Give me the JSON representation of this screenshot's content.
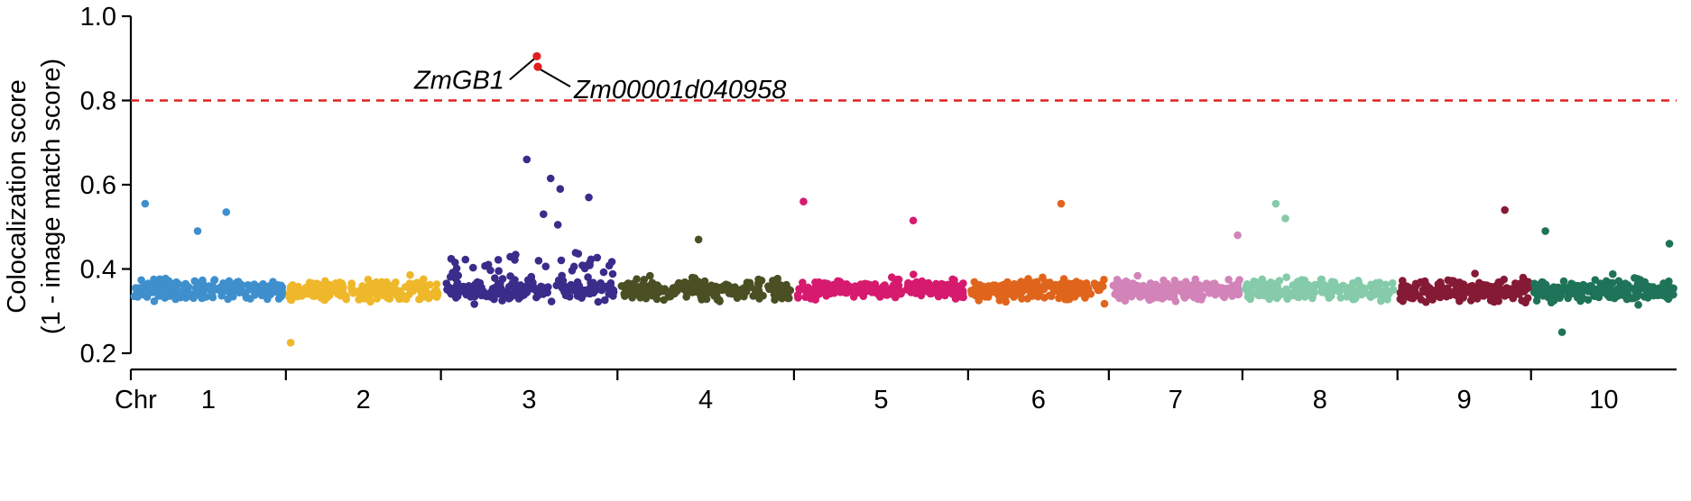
{
  "chart_data": {
    "type": "scatter",
    "title": "",
    "ylabel_lines": [
      "Colocalization score",
      "(1 - image match score)"
    ],
    "xlabel": "Chr",
    "ylim": [
      0.2,
      1.0
    ],
    "yticks": [
      "0.2",
      "0.4",
      "0.6",
      "0.8",
      "1.0"
    ],
    "threshold": {
      "value": 0.8,
      "color": "#e02020",
      "style": "dashed"
    },
    "highlight_color": "#e02020",
    "chromosomes": [
      {
        "name": "1",
        "color": "#3f8fcd",
        "span": [
          0,
          325
        ]
      },
      {
        "name": "2",
        "color": "#efb82a",
        "span": [
          325,
          650
        ]
      },
      {
        "name": "3",
        "color": "#3a2c8a",
        "span": [
          650,
          1020
        ]
      },
      {
        "name": "4",
        "color": "#4a4f24",
        "span": [
          1020,
          1390
        ]
      },
      {
        "name": "5",
        "color": "#d61a6e",
        "span": [
          1390,
          1755
        ]
      },
      {
        "name": "6",
        "color": "#e0651c",
        "span": [
          1755,
          2050
        ]
      },
      {
        "name": "7",
        "color": "#d284b9",
        "span": [
          2050,
          2330
        ]
      },
      {
        "name": "8",
        "color": "#85cba9",
        "span": [
          2330,
          2655
        ]
      },
      {
        "name": "9",
        "color": "#851a35",
        "span": [
          2655,
          2935
        ]
      },
      {
        "name": "10",
        "color": "#1f7358",
        "span": [
          2935,
          3240
        ]
      }
    ],
    "notable_points": [
      {
        "chr": "1",
        "x": 30,
        "y": 0.555
      },
      {
        "chr": "1",
        "x": 140,
        "y": 0.49
      },
      {
        "chr": "1",
        "x": 200,
        "y": 0.535
      },
      {
        "chr": "2",
        "x": 335,
        "y": 0.225
      },
      {
        "chr": "3",
        "x": 830,
        "y": 0.66
      },
      {
        "chr": "3",
        "x": 880,
        "y": 0.615
      },
      {
        "chr": "3",
        "x": 900,
        "y": 0.59
      },
      {
        "chr": "3",
        "x": 865,
        "y": 0.53
      },
      {
        "chr": "3",
        "x": 895,
        "y": 0.505
      },
      {
        "chr": "3",
        "x": 960,
        "y": 0.57
      },
      {
        "chr": "4",
        "x": 1190,
        "y": 0.47
      },
      {
        "chr": "5",
        "x": 1410,
        "y": 0.56
      },
      {
        "chr": "5",
        "x": 1640,
        "y": 0.515
      },
      {
        "chr": "6",
        "x": 1950,
        "y": 0.555
      },
      {
        "chr": "7",
        "x": 2320,
        "y": 0.48
      },
      {
        "chr": "8",
        "x": 2400,
        "y": 0.555
      },
      {
        "chr": "8",
        "x": 2420,
        "y": 0.52
      },
      {
        "chr": "9",
        "x": 2880,
        "y": 0.54
      },
      {
        "chr": "10",
        "x": 2965,
        "y": 0.49
      },
      {
        "chr": "10",
        "x": 3000,
        "y": 0.25
      },
      {
        "chr": "10",
        "x": 3225,
        "y": 0.46
      }
    ],
    "highlighted_genes": [
      {
        "label": "ZmGB1",
        "chr": "3",
        "x": 851,
        "y": 0.905
      },
      {
        "label": "Zm00001d040958",
        "chr": "3",
        "x": 853,
        "y": 0.88
      }
    ],
    "bulk_distribution": {
      "points_per_chromosome": 210,
      "typical_range": [
        0.3,
        0.42
      ],
      "median": 0.35
    }
  }
}
